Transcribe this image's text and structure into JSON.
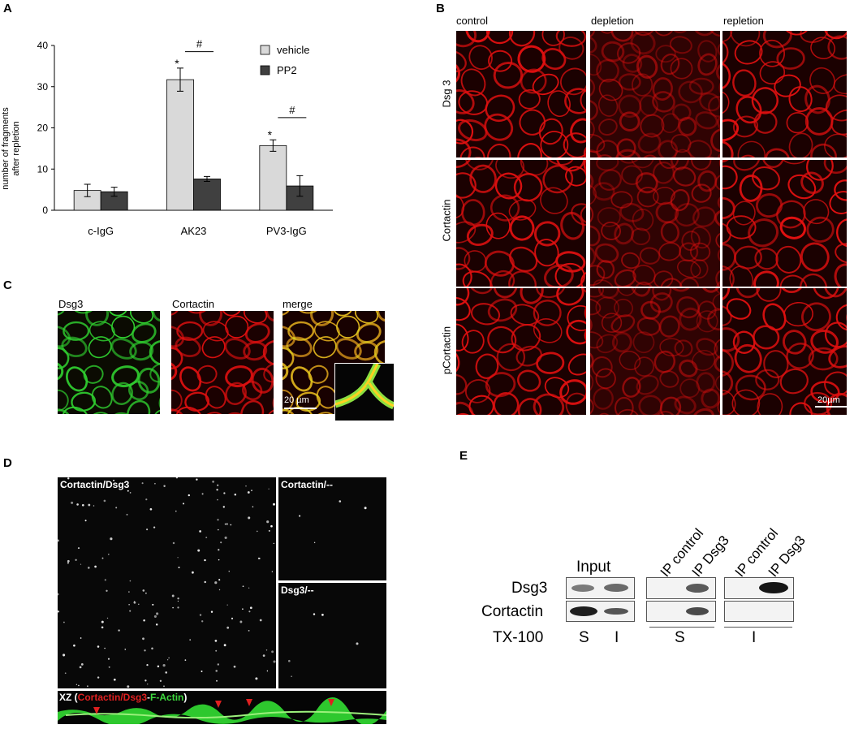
{
  "panel_letters": {
    "A": "A",
    "B": "B",
    "C": "C",
    "D": "D",
    "E": "E"
  },
  "chart_data": {
    "type": "bar",
    "categories": [
      "c-IgG",
      "AK23",
      "PV3-IgG"
    ],
    "series": [
      {
        "name": "vehicle",
        "values": [
          4.8,
          31.7,
          15.7
        ],
        "errors": [
          1.5,
          2.8,
          1.4
        ],
        "color": "#d9d9d9"
      },
      {
        "name": "PP2",
        "values": [
          4.5,
          7.6,
          5.9
        ],
        "errors": [
          1.1,
          0.6,
          2.5
        ],
        "color": "#404040"
      }
    ],
    "ylabel_line1": "number of fragments",
    "ylabel_line2": "after repletion",
    "ylim": [
      0,
      40
    ],
    "yticks": [
      "0",
      "10",
      "20",
      "30",
      "40"
    ],
    "annotations": {
      "star": "*",
      "hash": "#"
    },
    "legend_position": "top-right"
  },
  "panel_b": {
    "columns": [
      "control",
      "depletion",
      "repletion"
    ],
    "rows": [
      "Dsg 3",
      "Cortactin",
      "pCortactin"
    ],
    "scale_bar": "20µm"
  },
  "panel_c": {
    "titles": [
      "Dsg3",
      "Cortactin",
      "merge"
    ],
    "scale_bar": "20 µm"
  },
  "panel_d": {
    "main_label": "Cortactin/Dsg3",
    "ctrl1_label": "Cortactin/--",
    "ctrl2_label": "Dsg3/--",
    "xz_prefix": "XZ (",
    "xz_part1": "Cortactin/Dsg3",
    "xz_sep": "-",
    "xz_part2": "F-Actin",
    "xz_suffix": ")"
  },
  "panel_e": {
    "input_label": "Input",
    "lane_labels": [
      "IP control",
      "IP Dsg3",
      "IP control",
      "IP Dsg3"
    ],
    "rows": [
      "Dsg3",
      "Cortactin",
      "TX-100"
    ],
    "fractions": [
      "S",
      "I",
      "S",
      "I"
    ]
  }
}
